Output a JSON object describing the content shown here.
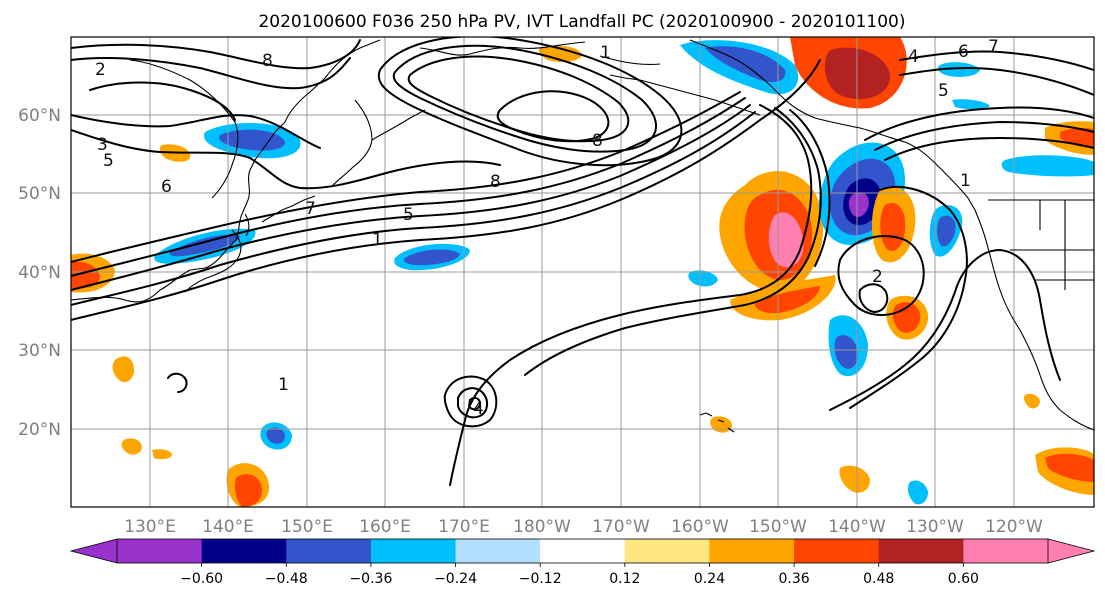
{
  "title": "2020100600 F036 250 hPa PV, IVT Landfall PC (2020100900 - 2020101100)",
  "lon_labels": [
    "130°E",
    "140°E",
    "150°E",
    "160°E",
    "170°E",
    "180°W",
    "170°W",
    "160°W",
    "150°W",
    "140°W",
    "130°W",
    "120°W"
  ],
  "lat_labels": [
    "60°N",
    "50°N",
    "40°N",
    "30°N",
    "20°N"
  ],
  "colorbar": {
    "colors": [
      "#9933cc",
      "#00008b",
      "#3355cc",
      "#00bfff",
      "#b3e0ff",
      "#ffffff",
      "#ffe680",
      "#ffa500",
      "#ff4500",
      "#b22222",
      "#ff80b0"
    ],
    "tick_labels": [
      "−0.60",
      "−0.48",
      "−0.36",
      "−0.24",
      "−0.12",
      "0.12",
      "0.24",
      "0.36",
      "0.48",
      "0.60"
    ]
  },
  "contour_labels": [
    "2",
    "8",
    "3",
    "5",
    "6",
    "7",
    "5",
    "1",
    "1",
    "8",
    "8",
    "4",
    "6",
    "7",
    "5",
    "1",
    "2",
    "4",
    "1"
  ]
}
